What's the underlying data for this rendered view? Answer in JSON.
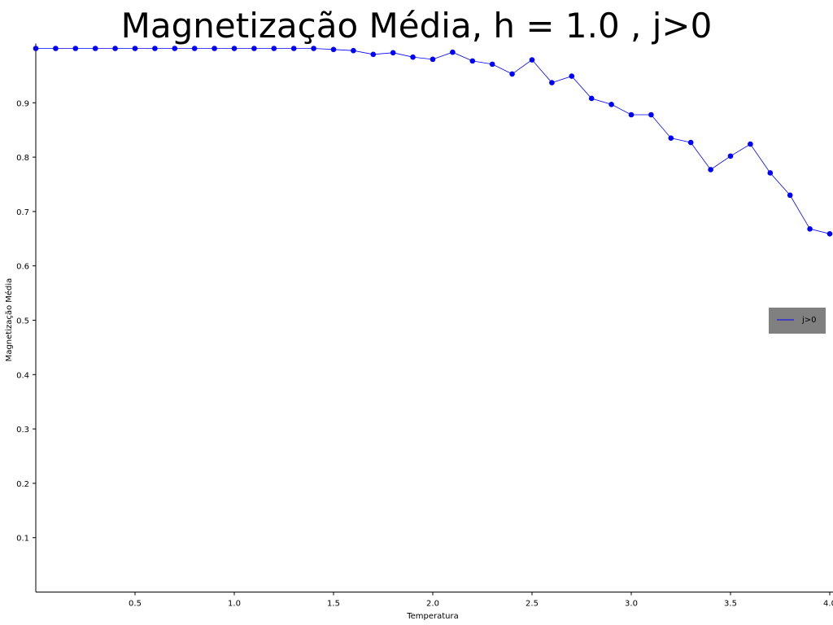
{
  "chart_data": {
    "type": "line",
    "title": "Magnetização Média, h = 1.0 , j>0",
    "xlabel": "Temperatura",
    "ylabel": "Magnetização Média",
    "xlim": [
      0.0,
      4.0
    ],
    "ylim": [
      0.0,
      1.0
    ],
    "xticks": [
      "0.5",
      "1.0",
      "1.5",
      "2.0",
      "2.5",
      "3.0",
      "3.5",
      "4.0"
    ],
    "yticks": [
      "0.1",
      "0.2",
      "0.3",
      "0.4",
      "0.5",
      "0.6",
      "0.7",
      "0.8",
      "0.9"
    ],
    "grid": false,
    "legend_position": "center-right",
    "series": [
      {
        "name": "j>0",
        "color": "#0000ff",
        "marker": "circle",
        "x": [
          0.0,
          0.1,
          0.2,
          0.3,
          0.4,
          0.5,
          0.6,
          0.7,
          0.8,
          0.9,
          1.0,
          1.1,
          1.2,
          1.3,
          1.4,
          1.5,
          1.6,
          1.7,
          1.8,
          1.9,
          2.0,
          2.1,
          2.2,
          2.3,
          2.4,
          2.5,
          2.6,
          2.7,
          2.8,
          2.9,
          3.0,
          3.1,
          3.2,
          3.3,
          3.4,
          3.5,
          3.6,
          3.7,
          3.8,
          3.9,
          4.0
        ],
        "y": [
          1.0,
          1.0,
          1.0,
          1.0,
          1.0,
          1.0,
          1.0,
          1.0,
          1.0,
          1.0,
          1.0,
          1.0,
          1.0,
          1.0,
          1.0,
          0.998,
          0.996,
          0.989,
          0.992,
          0.984,
          0.98,
          0.993,
          0.977,
          0.971,
          0.953,
          0.979,
          0.937,
          0.949,
          0.908,
          0.897,
          0.878,
          0.878,
          0.835,
          0.827,
          0.777,
          0.802,
          0.824,
          0.771,
          0.73,
          0.668,
          0.659
        ]
      }
    ]
  }
}
